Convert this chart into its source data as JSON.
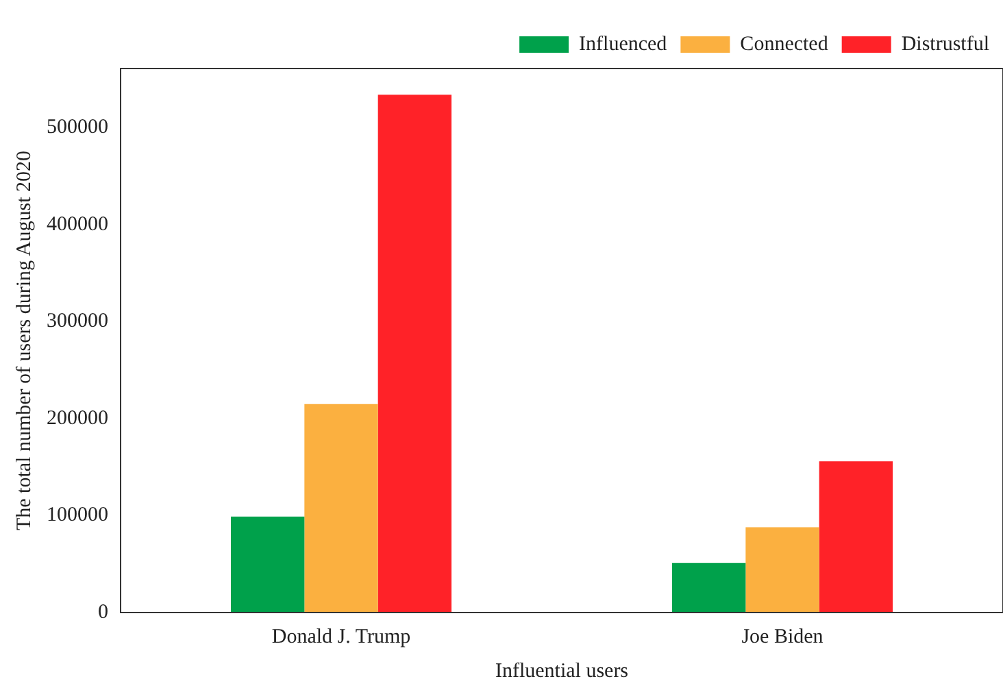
{
  "chart_data": {
    "type": "bar",
    "xlabel": "Influential users",
    "ylabel": "The total number of users during August 2020",
    "categories": [
      "Donald J. Trump",
      "Joe Biden"
    ],
    "series": [
      {
        "name": "Influenced",
        "color": "#00a14b",
        "values": [
          99000,
          51000
        ]
      },
      {
        "name": "Connected",
        "color": "#fbb040",
        "values": [
          215000,
          88000
        ]
      },
      {
        "name": "Distrustful",
        "color": "#ff2228",
        "values": [
          534000,
          156000
        ]
      }
    ],
    "ylim": [
      0,
      561000
    ],
    "yticks": [
      0,
      100000,
      200000,
      300000,
      400000,
      500000
    ],
    "grid": false,
    "legend": "top right"
  }
}
